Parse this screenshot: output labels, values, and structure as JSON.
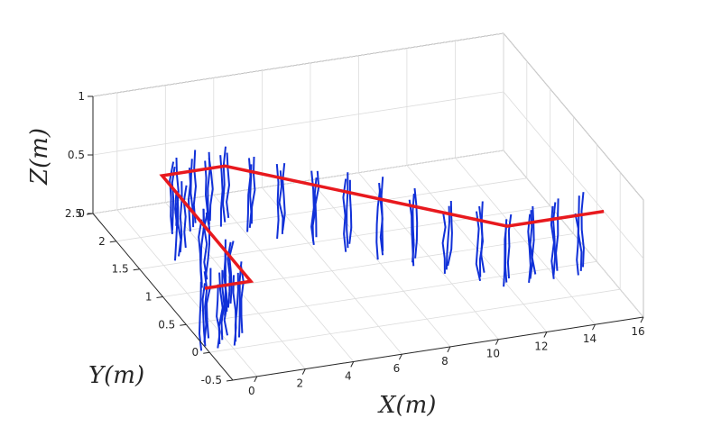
{
  "chart_data": {
    "type": "line",
    "projection": "3d",
    "xlabel": "X(m)",
    "ylabel": "Y(m)",
    "zlabel": "Z(m)",
    "xlim": [
      -1,
      16
    ],
    "ylim": [
      -0.5,
      2.5
    ],
    "zlim": [
      0,
      1
    ],
    "x_ticks": [
      "0",
      "2",
      "4",
      "6",
      "8",
      "10",
      "12",
      "14",
      "16"
    ],
    "y_ticks": [
      "-0.5",
      "0",
      "0.5",
      "1",
      "1.5",
      "2",
      "2.5"
    ],
    "z_ticks": [
      "0",
      "0.5",
      "1"
    ],
    "grid": true,
    "colors": {
      "path": "#e8191e",
      "strokes": "#1030d8",
      "axes": "#262626",
      "grid": "#dcdcdc"
    },
    "series": [
      {
        "color": "#e8191e",
        "points": [
          {
            "x": -1.0,
            "y": 0.1,
            "z": 0.5
          },
          {
            "x": 0.9,
            "y": 0.1,
            "z": 0.5
          },
          {
            "x": 0.9,
            "y": 2.0,
            "z": 0.5
          },
          {
            "x": 3.5,
            "y": 2.0,
            "z": 0.5
          },
          {
            "x": 12.0,
            "y": 0.35,
            "z": 0.5
          },
          {
            "x": 16.0,
            "y": 0.35,
            "z": 0.5
          }
        ]
      }
    ],
    "stroke_columns": [
      {
        "x": -1.0,
        "y": 0.1,
        "n": 4
      },
      {
        "x": -0.3,
        "y": 0.1,
        "n": 4
      },
      {
        "x": 0.4,
        "y": 0.1,
        "n": 4
      },
      {
        "x": 0.9,
        "y": 0.6,
        "n": 4
      },
      {
        "x": 0.9,
        "y": 1.1,
        "n": 4
      },
      {
        "x": 0.9,
        "y": 1.6,
        "n": 4
      },
      {
        "x": 1.4,
        "y": 2.0,
        "n": 3
      },
      {
        "x": 2.1,
        "y": 2.0,
        "n": 3
      },
      {
        "x": 2.8,
        "y": 2.0,
        "n": 3
      },
      {
        "x": 3.5,
        "y": 2.0,
        "n": 3
      },
      {
        "x": 4.3,
        "y": 1.85,
        "n": 3
      },
      {
        "x": 5.2,
        "y": 1.67,
        "n": 3
      },
      {
        "x": 6.2,
        "y": 1.48,
        "n": 3
      },
      {
        "x": 7.2,
        "y": 1.29,
        "n": 3
      },
      {
        "x": 8.2,
        "y": 1.09,
        "n": 3
      },
      {
        "x": 9.2,
        "y": 0.9,
        "n": 3
      },
      {
        "x": 10.2,
        "y": 0.7,
        "n": 3
      },
      {
        "x": 11.2,
        "y": 0.5,
        "n": 3
      },
      {
        "x": 12.0,
        "y": 0.35,
        "n": 3
      },
      {
        "x": 13.0,
        "y": 0.35,
        "n": 3
      },
      {
        "x": 14.0,
        "y": 0.35,
        "n": 3
      },
      {
        "x": 15.0,
        "y": 0.35,
        "n": 3
      }
    ]
  }
}
